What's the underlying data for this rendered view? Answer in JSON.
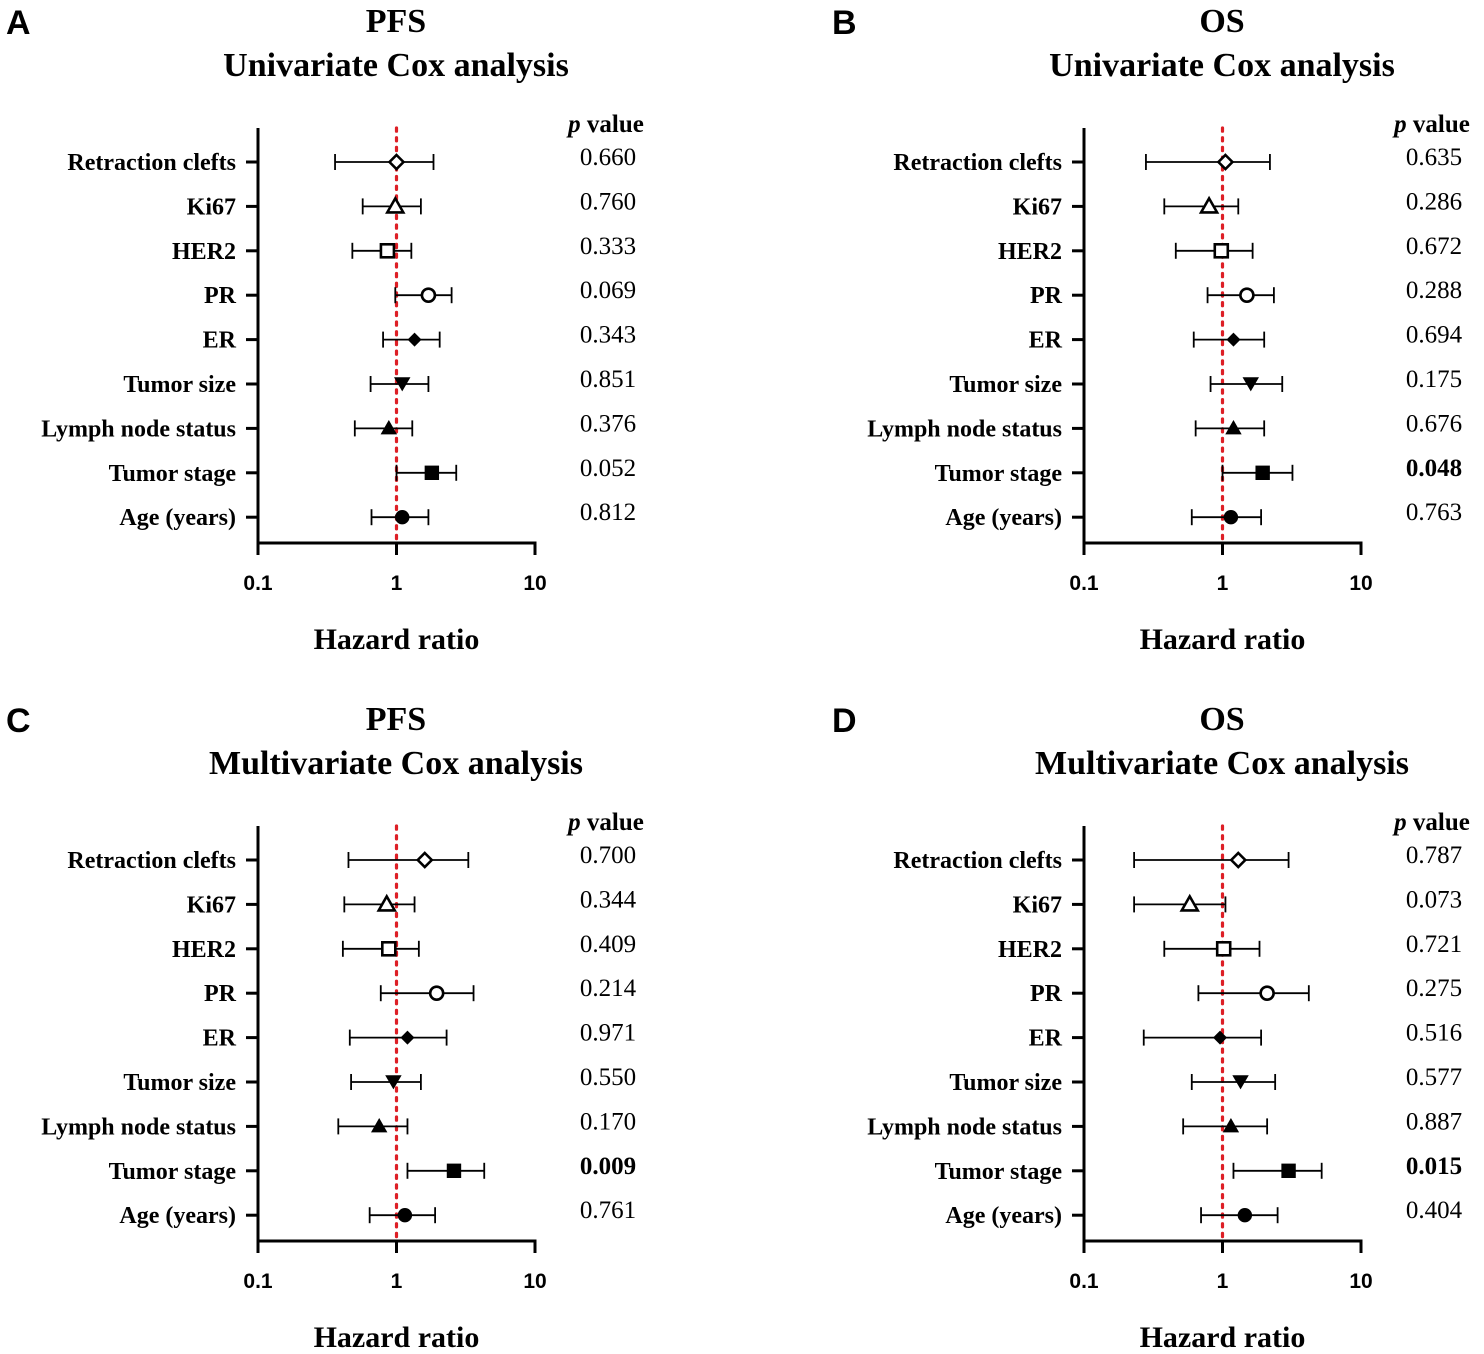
{
  "chart_data": [
    {
      "type": "forest",
      "panel": "A",
      "title_line1": "PFS",
      "title_line2": "Univariate Cox analysis",
      "pvalue_header_italic": "p",
      "pvalue_header_rest": " value",
      "xlabel": "Hazard ratio",
      "xscale": "log",
      "xlim": [
        0.1,
        10
      ],
      "xticks": [
        {
          "value": 0.1,
          "label": "0.1"
        },
        {
          "value": 1,
          "label": "1"
        },
        {
          "value": 10,
          "label": "10"
        }
      ],
      "reference_line": 1,
      "rows": [
        {
          "label": "Retraction clefts",
          "marker": "diamond-open",
          "hr": 1.0,
          "lower": 0.36,
          "upper": 1.85,
          "p": "0.660",
          "p_bold": false
        },
        {
          "label": "Ki67",
          "marker": "triangle-open",
          "hr": 0.98,
          "lower": 0.57,
          "upper": 1.5,
          "p": "0.760",
          "p_bold": false
        },
        {
          "label": "HER2",
          "marker": "square-open",
          "hr": 0.86,
          "lower": 0.48,
          "upper": 1.28,
          "p": "0.333",
          "p_bold": false
        },
        {
          "label": "PR",
          "marker": "circle-open",
          "hr": 1.7,
          "lower": 0.98,
          "upper": 2.5,
          "p": "0.069",
          "p_bold": false
        },
        {
          "label": "ER",
          "marker": "diamond-filled",
          "hr": 1.35,
          "lower": 0.8,
          "upper": 2.05,
          "p": "0.343",
          "p_bold": false
        },
        {
          "label": "Tumor size",
          "marker": "triangle-down-filled",
          "hr": 1.1,
          "lower": 0.65,
          "upper": 1.7,
          "p": "0.851",
          "p_bold": false
        },
        {
          "label": "Lymph node status",
          "marker": "triangle-filled",
          "hr": 0.88,
          "lower": 0.5,
          "upper": 1.3,
          "p": "0.376",
          "p_bold": false
        },
        {
          "label": "Tumor stage",
          "marker": "square-filled",
          "hr": 1.8,
          "lower": 1.0,
          "upper": 2.7,
          "p": "0.052",
          "p_bold": false
        },
        {
          "label": "Age (years)",
          "marker": "circle-filled",
          "hr": 1.1,
          "lower": 0.66,
          "upper": 1.7,
          "p": "0.812",
          "p_bold": false
        }
      ]
    },
    {
      "type": "forest",
      "panel": "B",
      "title_line1": "OS",
      "title_line2": "Univariate Cox analysis",
      "pvalue_header_italic": "p",
      "pvalue_header_rest": " value",
      "xlabel": "Hazard ratio",
      "xscale": "log",
      "xlim": [
        0.1,
        10
      ],
      "xticks": [
        {
          "value": 0.1,
          "label": "0.1"
        },
        {
          "value": 1,
          "label": "1"
        },
        {
          "value": 10,
          "label": "10"
        }
      ],
      "reference_line": 1,
      "rows": [
        {
          "label": "Retraction clefts",
          "marker": "diamond-open",
          "hr": 1.05,
          "lower": 0.28,
          "upper": 2.2,
          "p": "0.635",
          "p_bold": false
        },
        {
          "label": "Ki67",
          "marker": "triangle-open",
          "hr": 0.8,
          "lower": 0.38,
          "upper": 1.3,
          "p": "0.286",
          "p_bold": false
        },
        {
          "label": "HER2",
          "marker": "square-open",
          "hr": 0.98,
          "lower": 0.46,
          "upper": 1.65,
          "p": "0.672",
          "p_bold": false
        },
        {
          "label": "PR",
          "marker": "circle-open",
          "hr": 1.5,
          "lower": 0.78,
          "upper": 2.35,
          "p": "0.288",
          "p_bold": false
        },
        {
          "label": "ER",
          "marker": "diamond-filled",
          "hr": 1.2,
          "lower": 0.62,
          "upper": 2.0,
          "p": "0.694",
          "p_bold": false
        },
        {
          "label": "Tumor size",
          "marker": "triangle-down-filled",
          "hr": 1.6,
          "lower": 0.82,
          "upper": 2.7,
          "p": "0.175",
          "p_bold": false
        },
        {
          "label": "Lymph node status",
          "marker": "triangle-filled",
          "hr": 1.2,
          "lower": 0.64,
          "upper": 2.0,
          "p": "0.676",
          "p_bold": false
        },
        {
          "label": "Tumor stage",
          "marker": "square-filled",
          "hr": 1.95,
          "lower": 1.0,
          "upper": 3.2,
          "p": "0.048",
          "p_bold": true
        },
        {
          "label": "Age (years)",
          "marker": "circle-filled",
          "hr": 1.15,
          "lower": 0.6,
          "upper": 1.9,
          "p": "0.763",
          "p_bold": false
        }
      ]
    },
    {
      "type": "forest",
      "panel": "C",
      "title_line1": "PFS",
      "title_line2": "Multivariate Cox analysis",
      "pvalue_header_italic": "p",
      "pvalue_header_rest": " value",
      "xlabel": "Hazard ratio",
      "xscale": "log",
      "xlim": [
        0.1,
        10
      ],
      "xticks": [
        {
          "value": 0.1,
          "label": "0.1"
        },
        {
          "value": 1,
          "label": "1"
        },
        {
          "value": 10,
          "label": "10"
        }
      ],
      "reference_line": 1,
      "rows": [
        {
          "label": "Retraction clefts",
          "marker": "diamond-open",
          "hr": 1.6,
          "lower": 0.45,
          "upper": 3.3,
          "p": "0.700",
          "p_bold": false
        },
        {
          "label": "Ki67",
          "marker": "triangle-open",
          "hr": 0.85,
          "lower": 0.42,
          "upper": 1.35,
          "p": "0.344",
          "p_bold": false
        },
        {
          "label": "HER2",
          "marker": "square-open",
          "hr": 0.88,
          "lower": 0.41,
          "upper": 1.45,
          "p": "0.409",
          "p_bold": false
        },
        {
          "label": "PR",
          "marker": "circle-open",
          "hr": 1.95,
          "lower": 0.77,
          "upper": 3.6,
          "p": "0.214",
          "p_bold": false
        },
        {
          "label": "ER",
          "marker": "diamond-filled",
          "hr": 1.2,
          "lower": 0.46,
          "upper": 2.3,
          "p": "0.971",
          "p_bold": false
        },
        {
          "label": "Tumor size",
          "marker": "triangle-down-filled",
          "hr": 0.95,
          "lower": 0.47,
          "upper": 1.5,
          "p": "0.550",
          "p_bold": false
        },
        {
          "label": "Lymph node status",
          "marker": "triangle-filled",
          "hr": 0.75,
          "lower": 0.38,
          "upper": 1.2,
          "p": "0.170",
          "p_bold": false
        },
        {
          "label": "Tumor stage",
          "marker": "square-filled",
          "hr": 2.6,
          "lower": 1.2,
          "upper": 4.3,
          "p": "0.009",
          "p_bold": true
        },
        {
          "label": "Age (years)",
          "marker": "circle-filled",
          "hr": 1.15,
          "lower": 0.64,
          "upper": 1.9,
          "p": "0.761",
          "p_bold": false
        }
      ]
    },
    {
      "type": "forest",
      "panel": "D",
      "title_line1": "OS",
      "title_line2": "Multivariate Cox analysis",
      "pvalue_header_italic": "p",
      "pvalue_header_rest": " value",
      "xlabel": "Hazard ratio",
      "xscale": "log",
      "xlim": [
        0.1,
        10
      ],
      "xticks": [
        {
          "value": 0.1,
          "label": "0.1"
        },
        {
          "value": 1,
          "label": "1"
        },
        {
          "value": 10,
          "label": "10"
        }
      ],
      "reference_line": 1,
      "rows": [
        {
          "label": "Retraction clefts",
          "marker": "diamond-open",
          "hr": 1.3,
          "lower": 0.23,
          "upper": 3.0,
          "p": "0.787",
          "p_bold": false
        },
        {
          "label": "Ki67",
          "marker": "triangle-open",
          "hr": 0.58,
          "lower": 0.23,
          "upper": 1.05,
          "p": "0.073",
          "p_bold": false
        },
        {
          "label": "HER2",
          "marker": "square-open",
          "hr": 1.02,
          "lower": 0.38,
          "upper": 1.85,
          "p": "0.721",
          "p_bold": false
        },
        {
          "label": "PR",
          "marker": "circle-open",
          "hr": 2.1,
          "lower": 0.67,
          "upper": 4.2,
          "p": "0.275",
          "p_bold": false
        },
        {
          "label": "ER",
          "marker": "diamond-filled",
          "hr": 0.96,
          "lower": 0.27,
          "upper": 1.9,
          "p": "0.516",
          "p_bold": false
        },
        {
          "label": "Tumor size",
          "marker": "triangle-down-filled",
          "hr": 1.35,
          "lower": 0.6,
          "upper": 2.4,
          "p": "0.577",
          "p_bold": false
        },
        {
          "label": "Lymph node status",
          "marker": "triangle-filled",
          "hr": 1.15,
          "lower": 0.52,
          "upper": 2.1,
          "p": "0.887",
          "p_bold": false
        },
        {
          "label": "Tumor stage",
          "marker": "square-filled",
          "hr": 3.0,
          "lower": 1.2,
          "upper": 5.2,
          "p": "0.015",
          "p_bold": true
        },
        {
          "label": "Age (years)",
          "marker": "circle-filled",
          "hr": 1.45,
          "lower": 0.7,
          "upper": 2.5,
          "p": "0.404",
          "p_bold": false
        }
      ]
    }
  ]
}
